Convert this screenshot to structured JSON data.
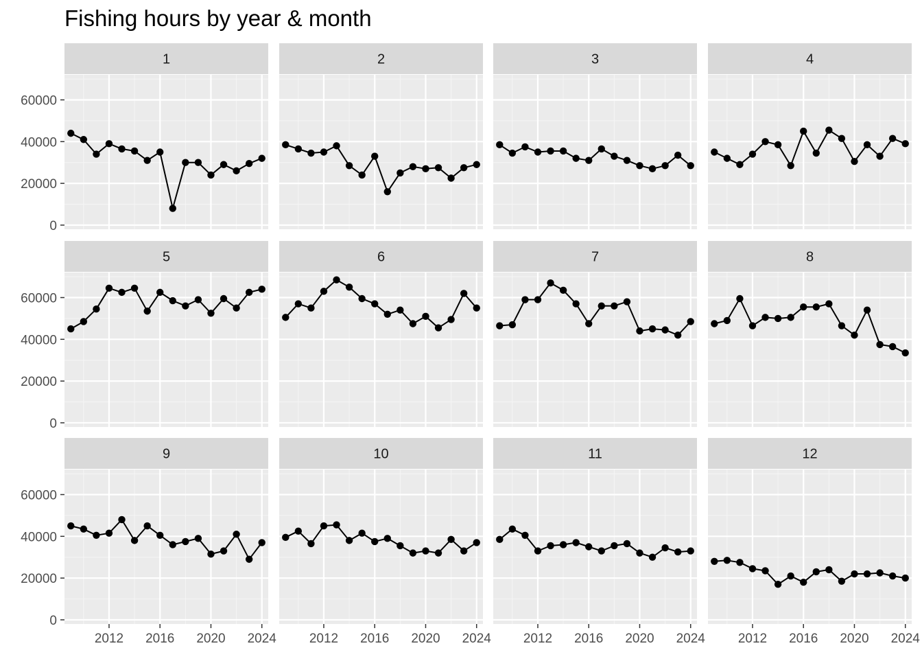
{
  "chart_data": {
    "type": "line",
    "title": "Fishing hours by year & month",
    "xlabel": "",
    "ylabel": "",
    "facet_by": "month",
    "x": [
      2009,
      2010,
      2011,
      2012,
      2013,
      2014,
      2015,
      2016,
      2017,
      2018,
      2019,
      2020,
      2021,
      2022,
      2023,
      2024
    ],
    "x_ticks": [
      2012,
      2016,
      2020,
      2024
    ],
    "y_ticks": [
      0,
      20000,
      40000,
      60000
    ],
    "xlim": [
      2008.5,
      2024.5
    ],
    "ylim": [
      -2000,
      72000
    ],
    "grid": true,
    "markers": true,
    "panels": [
      {
        "label": "1",
        "values": [
          44000,
          41000,
          34000,
          39000,
          36500,
          35500,
          31000,
          35000,
          8000,
          30000,
          30000,
          24000,
          29000,
          26000,
          29500,
          32000
        ]
      },
      {
        "label": "2",
        "values": [
          38500,
          36500,
          34500,
          35000,
          38000,
          28500,
          24000,
          33000,
          16000,
          25000,
          28000,
          27000,
          27500,
          22500,
          27500,
          29000
        ]
      },
      {
        "label": "3",
        "values": [
          38500,
          34500,
          37500,
          35000,
          35500,
          35500,
          32000,
          31000,
          36500,
          33000,
          31000,
          28500,
          27000,
          28500,
          33500,
          28500
        ]
      },
      {
        "label": "4",
        "values": [
          35000,
          32000,
          29000,
          34000,
          40000,
          38500,
          28500,
          45000,
          34500,
          45500,
          41500,
          30500,
          38500,
          33000,
          41500,
          39000
        ]
      },
      {
        "label": "5",
        "values": [
          45000,
          48500,
          54500,
          64500,
          62500,
          64500,
          53500,
          62500,
          58500,
          56000,
          59000,
          52500,
          59500,
          55000,
          62500,
          64000
        ]
      },
      {
        "label": "6",
        "values": [
          50500,
          57000,
          55000,
          63000,
          68500,
          65000,
          59500,
          57000,
          52000,
          54000,
          47500,
          51000,
          45500,
          49500,
          62000,
          55000
        ]
      },
      {
        "label": "7",
        "values": [
          46500,
          47000,
          59000,
          59000,
          67000,
          63500,
          57000,
          47500,
          56000,
          56000,
          58000,
          44000,
          45000,
          44500,
          42000,
          48500
        ]
      },
      {
        "label": "8",
        "values": [
          47500,
          49000,
          59500,
          46500,
          50500,
          50000,
          50500,
          55500,
          55500,
          57000,
          46500,
          42000,
          54000,
          37500,
          36500,
          33500
        ]
      },
      {
        "label": "9",
        "values": [
          45000,
          43500,
          40500,
          41500,
          48000,
          38000,
          45000,
          40500,
          36000,
          37500,
          39000,
          31500,
          33000,
          41000,
          29000,
          37000
        ]
      },
      {
        "label": "10",
        "values": [
          39500,
          42500,
          36500,
          45000,
          45500,
          38000,
          41500,
          37500,
          39000,
          35500,
          32000,
          33000,
          32000,
          38500,
          33000,
          37000
        ]
      },
      {
        "label": "11",
        "values": [
          38500,
          43500,
          40500,
          33000,
          35500,
          36000,
          37000,
          35000,
          33000,
          35500,
          36500,
          32000,
          30000,
          34500,
          32500,
          33000
        ]
      },
      {
        "label": "12",
        "values": [
          28000,
          28500,
          27500,
          24500,
          23500,
          17000,
          21000,
          18000,
          23000,
          24000,
          18500,
          22000,
          22000,
          22500,
          21000,
          20000
        ]
      }
    ],
    "colors": {
      "panel_background": "#ebebeb",
      "grid_major": "#ffffff",
      "grid_minor": "#f5f5f5",
      "strip_background": "#d9d9d9",
      "line": "#000000",
      "point": "#000000",
      "tick_text": "#4d4d4d",
      "tick_mark": "#333333"
    }
  }
}
